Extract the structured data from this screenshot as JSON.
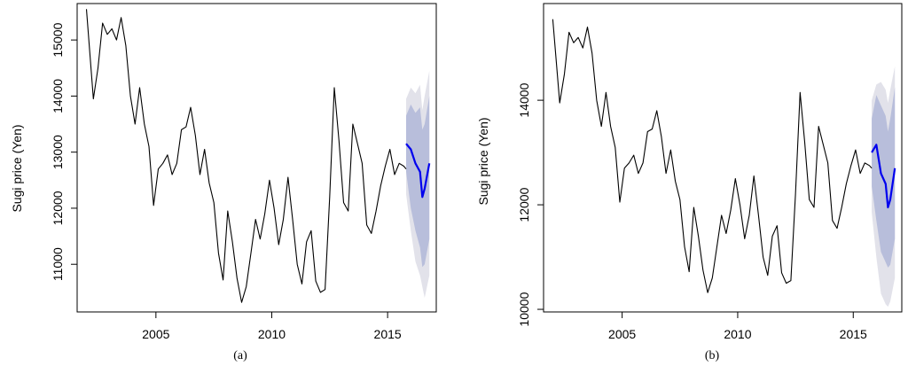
{
  "panels": [
    {
      "caption": "(a)",
      "chart_data": {
        "type": "line",
        "title": "",
        "xlabel": "",
        "ylabel": "Sugi price (Yen)",
        "xlim": [
          2001.6,
          2017.1
        ],
        "ylim": [
          10150,
          15650
        ],
        "x_ticks": [
          2005,
          2010,
          2015
        ],
        "y_ticks": [
          11000,
          12000,
          13000,
          14000,
          15000
        ],
        "grid": false,
        "legend": "none",
        "colors": {
          "history": "#000000",
          "forecast": "#0000ee",
          "band_inner": "#b8bedb",
          "band_outer": "#e2e2ea"
        },
        "series": [
          {
            "role": "history",
            "x": [
              2002.0,
              2002.3,
              2002.5,
              2002.7,
              2002.9,
              2003.1,
              2003.3,
              2003.5,
              2003.7,
              2003.9,
              2004.1,
              2004.3,
              2004.5,
              2004.7,
              2004.9,
              2005.1,
              2005.3,
              2005.5,
              2005.7,
              2005.9,
              2006.1,
              2006.3,
              2006.5,
              2006.7,
              2006.9,
              2007.1,
              2007.3,
              2007.5,
              2007.7,
              2007.9,
              2008.1,
              2008.3,
              2008.5,
              2008.7,
              2008.9,
              2009.1,
              2009.3,
              2009.5,
              2009.7,
              2009.9,
              2010.1,
              2010.3,
              2010.5,
              2010.7,
              2010.9,
              2011.1,
              2011.3,
              2011.5,
              2011.7,
              2011.9,
              2012.1,
              2012.3,
              2012.5,
              2012.7,
              2012.9,
              2013.1,
              2013.3,
              2013.5,
              2013.7,
              2013.9,
              2014.1,
              2014.3,
              2014.5,
              2014.7,
              2014.9,
              2015.1,
              2015.3,
              2015.5,
              2015.7,
              2015.8
            ],
            "y": [
              15550,
              13950,
              14500,
              15300,
              15100,
              15200,
              15000,
              15400,
              14900,
              14000,
              13500,
              14150,
              13500,
              13100,
              12050,
              12700,
              12800,
              12950,
              12600,
              12800,
              13400,
              13450,
              13800,
              13300,
              12600,
              13050,
              12450,
              12100,
              11200,
              10720,
              11950,
              11400,
              10750,
              10320,
              10600,
              11200,
              11800,
              11450,
              11900,
              12500,
              12000,
              11350,
              11800,
              12550,
              11800,
              11000,
              10650,
              11400,
              11600,
              10700,
              10500,
              10550,
              12200,
              14150,
              13200,
              12100,
              11950,
              13500,
              13150,
              12800,
              11700,
              11550,
              11950,
              12400,
              12750,
              13050,
              12600,
              12800,
              12750,
              12700
            ]
          },
          {
            "role": "forecast",
            "x": [
              2015.8,
              2016.0,
              2016.2,
              2016.4,
              2016.5,
              2016.6,
              2016.8
            ],
            "y": [
              13150,
              13050,
              12800,
              12650,
              12200,
              12350,
              12800
            ],
            "lower80": [
              12650,
              12000,
              11600,
              11300,
              10950,
              11000,
              11450
            ],
            "upper80": [
              13650,
              13850,
              13700,
              13800,
              13400,
              13500,
              14000
            ],
            "lower95": [
              12250,
              11600,
              11050,
              10800,
              10600,
              10400,
              10800
            ],
            "upper95": [
              13950,
              14150,
              14050,
              14200,
              13750,
              14000,
              14450
            ]
          }
        ]
      }
    },
    {
      "caption": "(b)",
      "chart_data": {
        "type": "line",
        "title": "",
        "xlabel": "",
        "ylabel": "Sugi price (Yen)",
        "xlim": [
          2001.6,
          2017.1
        ],
        "ylim": [
          9950,
          15850
        ],
        "x_ticks": [
          2005,
          2010,
          2015
        ],
        "y_ticks": [
          10000,
          12000,
          14000
        ],
        "grid": false,
        "legend": "none",
        "colors": {
          "history": "#000000",
          "forecast": "#0000ee",
          "band_inner": "#b8bedb",
          "band_outer": "#e2e2ea"
        },
        "series": [
          {
            "role": "history",
            "x": [
              2002.0,
              2002.3,
              2002.5,
              2002.7,
              2002.9,
              2003.1,
              2003.3,
              2003.5,
              2003.7,
              2003.9,
              2004.1,
              2004.3,
              2004.5,
              2004.7,
              2004.9,
              2005.1,
              2005.3,
              2005.5,
              2005.7,
              2005.9,
              2006.1,
              2006.3,
              2006.5,
              2006.7,
              2006.9,
              2007.1,
              2007.3,
              2007.5,
              2007.7,
              2007.9,
              2008.1,
              2008.3,
              2008.5,
              2008.7,
              2008.9,
              2009.1,
              2009.3,
              2009.5,
              2009.7,
              2009.9,
              2010.1,
              2010.3,
              2010.5,
              2010.7,
              2010.9,
              2011.1,
              2011.3,
              2011.5,
              2011.7,
              2011.9,
              2012.1,
              2012.3,
              2012.5,
              2012.7,
              2012.9,
              2013.1,
              2013.3,
              2013.5,
              2013.7,
              2013.9,
              2014.1,
              2014.3,
              2014.5,
              2014.7,
              2014.9,
              2015.1,
              2015.3,
              2015.5,
              2015.7,
              2015.8
            ],
            "y": [
              15550,
              13950,
              14500,
              15300,
              15100,
              15200,
              15000,
              15400,
              14900,
              14000,
              13500,
              14150,
              13500,
              13100,
              12050,
              12700,
              12800,
              12950,
              12600,
              12800,
              13400,
              13450,
              13800,
              13300,
              12600,
              13050,
              12450,
              12100,
              11200,
              10720,
              11950,
              11400,
              10750,
              10320,
              10600,
              11200,
              11800,
              11450,
              11900,
              12500,
              12000,
              11350,
              11800,
              12550,
              11800,
              11000,
              10650,
              11400,
              11600,
              10700,
              10500,
              10550,
              12200,
              14150,
              13200,
              12100,
              11950,
              13500,
              13150,
              12800,
              11700,
              11550,
              11950,
              12400,
              12750,
              13050,
              12600,
              12800,
              12750,
              12700
            ]
          },
          {
            "role": "forecast",
            "x": [
              2015.8,
              2016.0,
              2016.2,
              2016.4,
              2016.5,
              2016.6,
              2016.8
            ],
            "y": [
              13000,
              13150,
              12600,
              12400,
              11950,
              12100,
              12700
            ],
            "lower80": [
              12350,
              11700,
              11100,
              10900,
              10800,
              10850,
              11350
            ],
            "upper80": [
              13650,
              14100,
              13900,
              13700,
              13400,
              13650,
              14250
            ],
            "lower95": [
              11850,
              11000,
              10300,
              10100,
              10050,
              10150,
              10600
            ],
            "upper95": [
              14000,
              14300,
              14350,
              14200,
              13950,
              14200,
              14650
            ]
          }
        ]
      }
    }
  ]
}
